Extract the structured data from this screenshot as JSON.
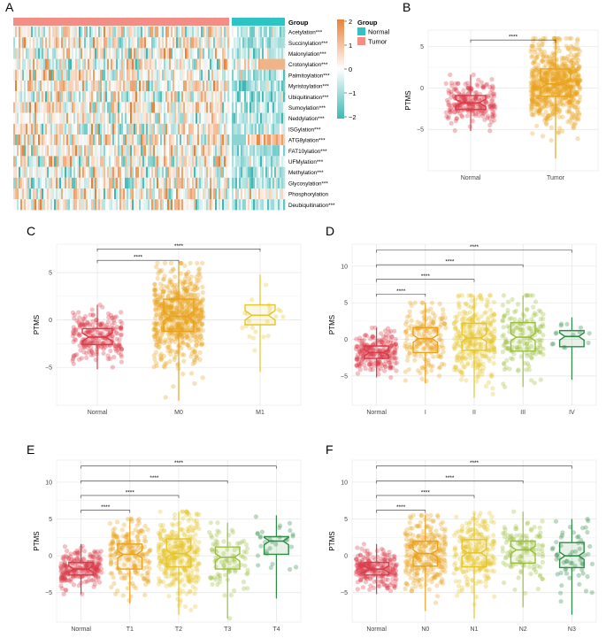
{
  "panel_labels": [
    "A",
    "B",
    "C",
    "D",
    "E",
    "F"
  ],
  "chart_data": [
    {
      "panel": "A",
      "type": "heatmap",
      "rows": [
        "Acetylation***",
        "Succinylation***",
        "Malonylation***",
        "Crotonylation***",
        "Palmitoylation***",
        "Myristoylation***",
        "Ubiquitination***",
        "Sumoylation***",
        "Neddylation***",
        "ISGylation***",
        "ATG8ylation***",
        "FAT10ylation***",
        "UFMylation***",
        "Methylation***",
        "Glycosylation***",
        "Phosphorylation",
        "Deubiquitination***"
      ],
      "groups": [
        {
          "name": "Tumor",
          "color": "#f28e86"
        },
        {
          "name": "Normal",
          "color": "#2ec4c6"
        }
      ],
      "legend_title": "Group",
      "scale_ticks": [
        2,
        1,
        0,
        -1,
        -2
      ],
      "colors": {
        "high": "#e8823a",
        "mid": "#ffffff",
        "low": "#3db8b4"
      }
    },
    {
      "panel": "B",
      "type": "box",
      "ylabel": "PTMS",
      "ylim": [
        -10,
        7
      ],
      "yticks": [
        -5,
        0,
        5
      ],
      "categories": [
        "Normal",
        "Tumor"
      ],
      "colors": [
        "#d93b48",
        "#e8a21b"
      ],
      "series": [
        {
          "name": "Normal",
          "median": -1.8,
          "q1": -2.6,
          "q3": -0.9,
          "low": -5.2,
          "high": 1.6,
          "n": 230
        },
        {
          "name": "Tumor",
          "median": 0.5,
          "q1": -1.0,
          "q3": 2.3,
          "low": -8.5,
          "high": 6.0,
          "n": 700
        }
      ],
      "comparisons": [
        {
          "from": 0,
          "to": 1,
          "y": 5.8,
          "label": "****"
        }
      ]
    },
    {
      "panel": "C",
      "type": "box",
      "ylabel": "PTMS",
      "ylim": [
        -9,
        8
      ],
      "yticks": [
        -5,
        0,
        5
      ],
      "categories": [
        "Normal",
        "M0",
        "M1"
      ],
      "colors": [
        "#d93b48",
        "#e8a21b",
        "#e6c52a"
      ],
      "series": [
        {
          "name": "Normal",
          "median": -1.8,
          "q1": -2.6,
          "q3": -0.9,
          "low": -5.2,
          "high": 1.6,
          "n": 230
        },
        {
          "name": "M0",
          "median": 0.4,
          "q1": -1.2,
          "q3": 2.2,
          "low": -8.5,
          "high": 6.0,
          "n": 650
        },
        {
          "name": "M1",
          "median": 0.5,
          "q1": -0.5,
          "q3": 1.6,
          "low": -5.5,
          "high": 4.8,
          "n": 22
        }
      ],
      "comparisons": [
        {
          "from": 0,
          "to": 1,
          "y": 6.3,
          "label": "****"
        },
        {
          "from": 0,
          "to": 2,
          "y": 7.5,
          "label": "****"
        }
      ]
    },
    {
      "panel": "D",
      "type": "box",
      "ylabel": "PTMS",
      "ylim": [
        -9,
        13
      ],
      "yticks": [
        -5,
        0,
        5,
        10
      ],
      "categories": [
        "Normal",
        "I",
        "II",
        "III",
        "IV"
      ],
      "colors": [
        "#d93b48",
        "#e8a21b",
        "#e6c52a",
        "#9bbf3a",
        "#2e8b45"
      ],
      "series": [
        {
          "name": "Normal",
          "median": -1.8,
          "q1": -2.6,
          "q3": -0.9,
          "low": -5.2,
          "high": 1.6,
          "n": 230
        },
        {
          "name": "I",
          "median": 0.1,
          "q1": -1.8,
          "q3": 1.6,
          "low": -6.0,
          "high": 5.0,
          "n": 180
        },
        {
          "name": "II",
          "median": 0.2,
          "q1": -1.5,
          "q3": 2.2,
          "low": -8.0,
          "high": 6.0,
          "n": 300
        },
        {
          "name": "III",
          "median": 0.3,
          "q1": -1.6,
          "q3": 2.3,
          "low": -6.5,
          "high": 6.0,
          "n": 160
        },
        {
          "name": "IV",
          "median": 0.4,
          "q1": -1.0,
          "q3": 1.2,
          "low": -5.5,
          "high": 3.0,
          "n": 14
        }
      ],
      "comparisons": [
        {
          "from": 0,
          "to": 1,
          "y": 6.2,
          "label": "****"
        },
        {
          "from": 0,
          "to": 2,
          "y": 8.2,
          "label": "****"
        },
        {
          "from": 0,
          "to": 3,
          "y": 10.2,
          "label": "****"
        },
        {
          "from": 0,
          "to": 4,
          "y": 12.2,
          "label": "****"
        }
      ]
    },
    {
      "panel": "E",
      "type": "box",
      "ylabel": "PTMS",
      "ylim": [
        -9,
        13
      ],
      "yticks": [
        -5,
        0,
        5,
        10
      ],
      "categories": [
        "Normal",
        "T1",
        "T2",
        "T3",
        "T4"
      ],
      "colors": [
        "#d93b48",
        "#e8a21b",
        "#e6c52a",
        "#9bbf3a",
        "#2e8b45"
      ],
      "series": [
        {
          "name": "Normal",
          "median": -1.8,
          "q1": -2.6,
          "q3": -0.9,
          "low": -5.2,
          "high": 1.6,
          "n": 230
        },
        {
          "name": "T1",
          "median": 0.2,
          "q1": -1.8,
          "q3": 1.6,
          "low": -6.5,
          "high": 5.0,
          "n": 200
        },
        {
          "name": "T2",
          "median": 0.3,
          "q1": -1.5,
          "q3": 2.3,
          "low": -8.0,
          "high": 6.0,
          "n": 330
        },
        {
          "name": "T3",
          "median": -0.2,
          "q1": -1.8,
          "q3": 1.2,
          "low": -8.5,
          "high": 4.5,
          "n": 90
        },
        {
          "name": "T4",
          "median": 2.0,
          "q1": 0.2,
          "q3": 2.6,
          "low": -5.8,
          "high": 5.5,
          "n": 30
        }
      ],
      "comparisons": [
        {
          "from": 0,
          "to": 1,
          "y": 6.2,
          "label": "****"
        },
        {
          "from": 0,
          "to": 2,
          "y": 8.2,
          "label": "****"
        },
        {
          "from": 0,
          "to": 3,
          "y": 10.2,
          "label": "****"
        },
        {
          "from": 0,
          "to": 4,
          "y": 12.2,
          "label": "****"
        }
      ]
    },
    {
      "panel": "F",
      "type": "box",
      "ylabel": "PTMS",
      "ylim": [
        -9,
        13
      ],
      "yticks": [
        -5,
        0,
        5,
        10
      ],
      "categories": [
        "Normal",
        "N0",
        "N1",
        "N2",
        "N3"
      ],
      "colors": [
        "#d93b48",
        "#e8a21b",
        "#e6c52a",
        "#9bbf3a",
        "#2e8b45"
      ],
      "series": [
        {
          "name": "Normal",
          "median": -1.8,
          "q1": -2.6,
          "q3": -0.9,
          "low": -5.2,
          "high": 1.6,
          "n": 230
        },
        {
          "name": "N0",
          "median": 0.3,
          "q1": -1.4,
          "q3": 2.0,
          "low": -7.5,
          "high": 5.5,
          "n": 280
        },
        {
          "name": "N1",
          "median": 0.4,
          "q1": -1.5,
          "q3": 2.2,
          "low": -8.5,
          "high": 5.8,
          "n": 230
        },
        {
          "name": "N2",
          "median": 0.8,
          "q1": -1.0,
          "q3": 2.0,
          "low": -7.0,
          "high": 6.0,
          "n": 120
        },
        {
          "name": "N3",
          "median": 0.0,
          "q1": -1.6,
          "q3": 1.8,
          "low": -8.0,
          "high": 5.0,
          "n": 60
        }
      ],
      "comparisons": [
        {
          "from": 0,
          "to": 1,
          "y": 6.2,
          "label": "****"
        },
        {
          "from": 0,
          "to": 2,
          "y": 8.2,
          "label": "****"
        },
        {
          "from": 0,
          "to": 3,
          "y": 10.2,
          "label": "****"
        },
        {
          "from": 0,
          "to": 4,
          "y": 12.2,
          "label": "****"
        }
      ]
    }
  ]
}
